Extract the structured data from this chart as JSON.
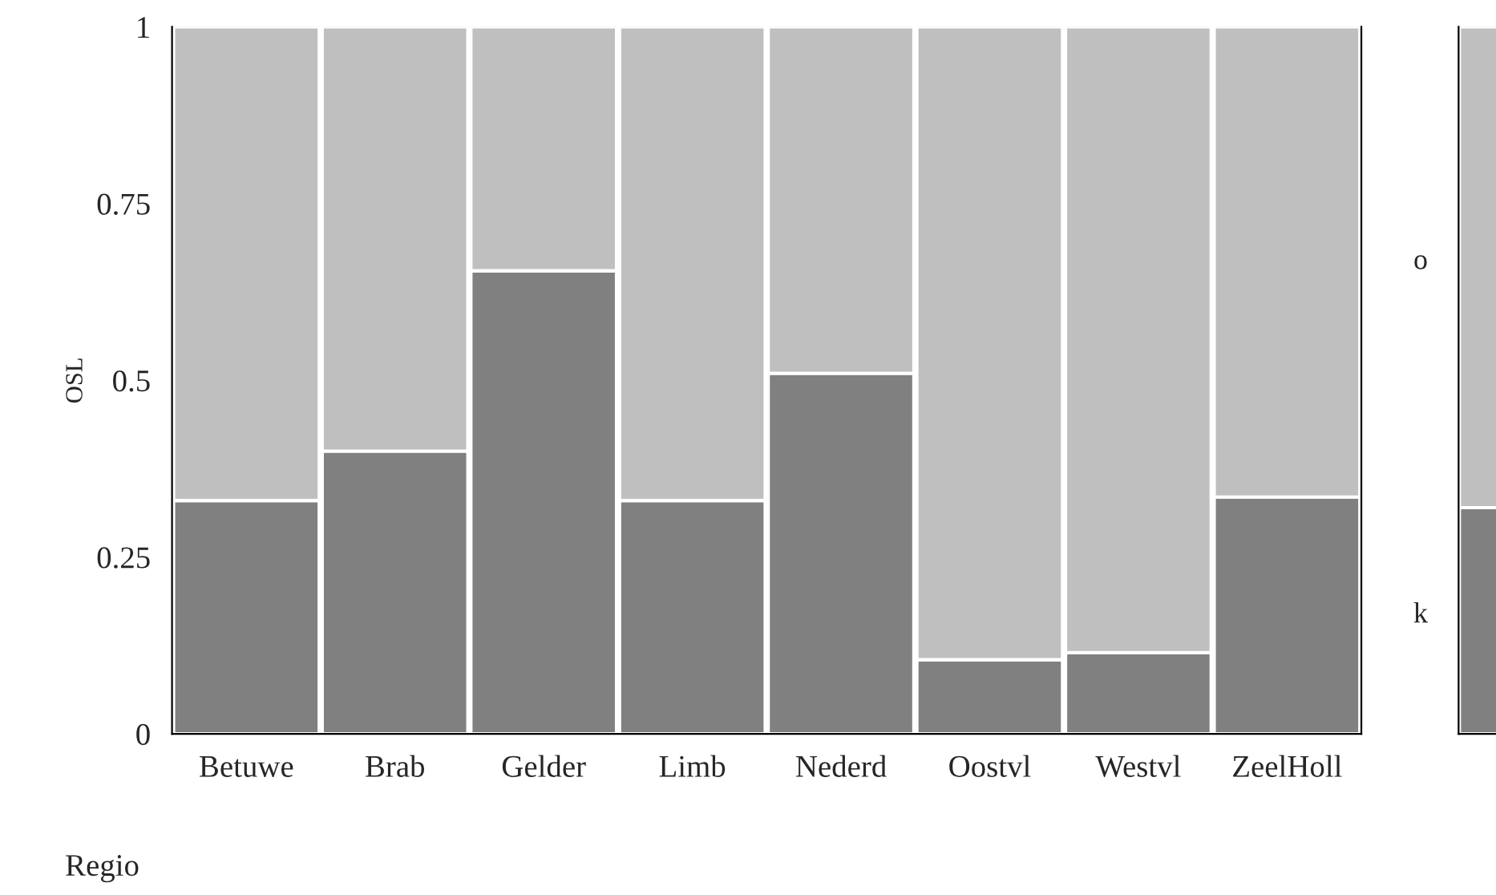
{
  "chart_data": [
    {
      "type": "bar",
      "stacked": true,
      "ylabel": "OSL",
      "xlabel": "Regio",
      "categories": [
        "Betuwe",
        "Brab",
        "Gelder",
        "Limb",
        "Nederd",
        "Oostvl",
        "Westvl",
        "ZeelHoll"
      ],
      "series": [
        {
          "name": "k",
          "color": "#808080",
          "values": [
            0.33,
            0.4,
            0.655,
            0.33,
            0.51,
            0.105,
            0.115,
            0.335
          ]
        },
        {
          "name": "o",
          "color": "#bfbfbf",
          "values": [
            0.67,
            0.6,
            0.345,
            0.67,
            0.49,
            0.895,
            0.885,
            0.665
          ]
        }
      ],
      "ylim": [
        0,
        1
      ],
      "yticks": [
        0,
        0.25,
        0.5,
        0.75,
        1
      ],
      "grid": false,
      "legend": false
    },
    {
      "type": "bar",
      "stacked": true,
      "categories": [
        null
      ],
      "series": [
        {
          "color": "#808080",
          "values": [
            0.32
          ]
        },
        {
          "color": "#bfbfbf",
          "values": [
            0.68
          ]
        }
      ],
      "ylim": [
        0,
        1
      ],
      "tick_labels": false,
      "grid": false,
      "legend": false
    }
  ]
}
